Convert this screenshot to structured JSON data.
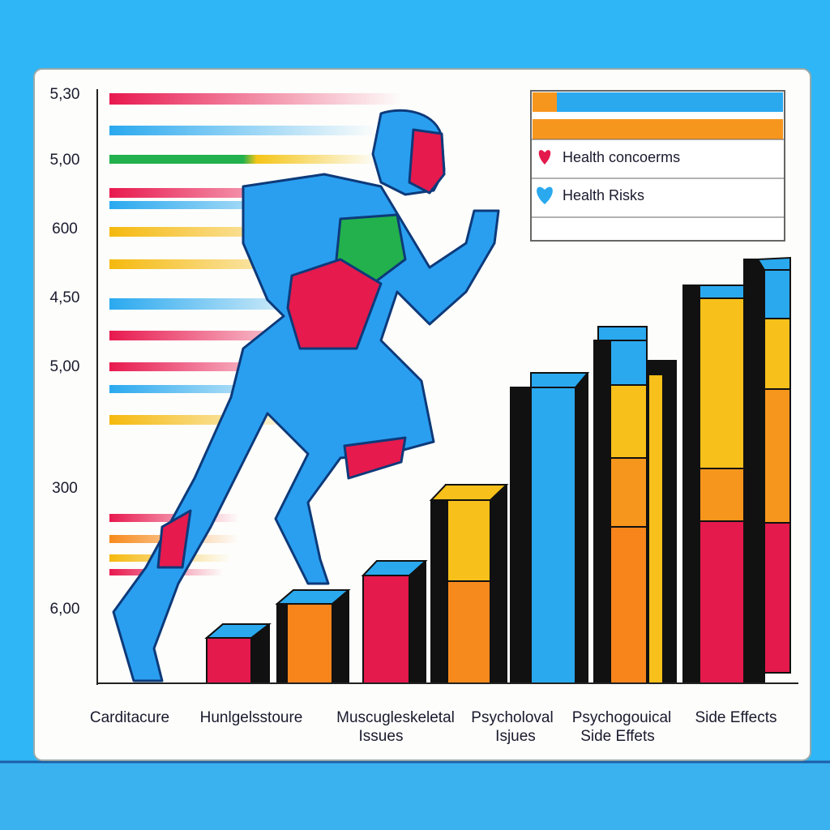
{
  "y_axis_labels": [
    "5,30",
    "5,00",
    "600",
    "4,50",
    "5,00",
    "300",
    "6,00"
  ],
  "legend": [
    {
      "label": "Health concoerms"
    },
    {
      "label": "Health Risks"
    }
  ],
  "categories": [
    [
      "Carditacure"
    ],
    [
      "Hunlgelsstoure"
    ],
    [
      "Muscugleskeletal",
      "Issues"
    ],
    [
      "Psycholoval",
      "Isjues"
    ],
    [
      "Psychogouical",
      "Side Effets"
    ],
    [
      "Side Effects"
    ]
  ]
}
